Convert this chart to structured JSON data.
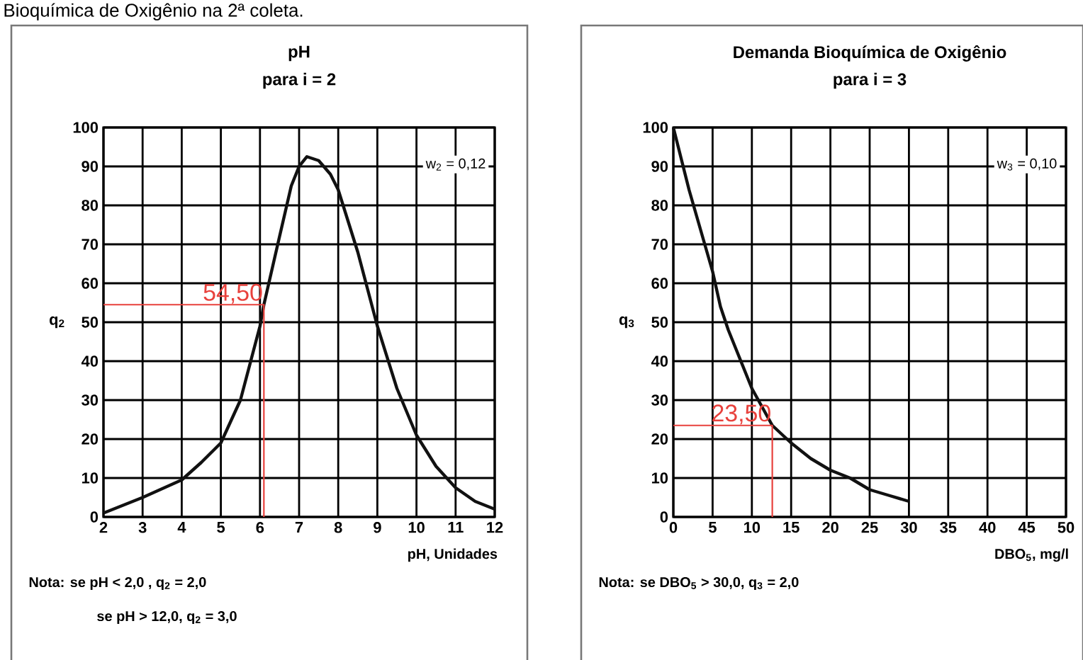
{
  "chart_data": [
    {
      "type": "line",
      "title": "pH",
      "subtitle": "para i = 2",
      "xlabel": "pH, Unidades",
      "ylabel": "q$_{2}$",
      "series": [
        {
          "x": [
            2,
            3,
            4,
            4.5,
            5,
            5.5,
            6,
            6.1,
            6.5,
            6.8,
            7,
            7.2,
            7.5,
            7.8,
            8,
            8.5,
            9,
            9.5,
            10,
            10.5,
            11,
            11.5,
            12
          ],
          "values": [
            1,
            5,
            9.5,
            14,
            19,
            30,
            49,
            54.5,
            72,
            85,
            90,
            92.5,
            91.5,
            88,
            84,
            68,
            49,
            33,
            21,
            13,
            7.5,
            4,
            2
          ],
          "color": "#111111"
        },
        {
          "x": [
            2,
            6.1,
            6.1
          ],
          "values": [
            54.5,
            54.5,
            0
          ],
          "color": "#e8413c"
        }
      ],
      "marker": "none",
      "line_style": "solid",
      "xlim": [
        2,
        12
      ],
      "ylim": [
        0,
        100
      ],
      "xticks": [
        2,
        3,
        4,
        5,
        6,
        7,
        8,
        9,
        10,
        11,
        12
      ],
      "yticks": [
        0,
        10,
        20,
        30,
        40,
        50,
        60,
        70,
        80,
        90,
        100
      ],
      "grid": true,
      "annotations": [
        "Bioquímica de Oxigênio na 2ª coleta.",
        "w$_{2}$ = 0,12",
        {
          "text": "54,50",
          "x": 6.1,
          "y": 54.5
        },
        "Nota:  se pH < 2,0 ,  q$_{2}$ = 2,0",
        "se pH > 12,0,  q$_{2}$ = 3,0"
      ]
    },
    {
      "type": "line",
      "title": "Demanda Bioquímica de Oxigênio",
      "subtitle": "para i = 3",
      "xlabel": "DBO$_{5}$, mg/l",
      "ylabel": "q$_{3}$",
      "series": [
        {
          "x": [
            0,
            1,
            2,
            3,
            4,
            5,
            6,
            7,
            8,
            10,
            12.6,
            15,
            17.5,
            20,
            22.5,
            25,
            27.5,
            30
          ],
          "values": [
            100,
            92,
            84,
            77,
            70,
            63,
            54,
            48,
            43,
            33,
            23.5,
            19,
            15,
            12,
            10,
            7,
            5.5,
            4
          ],
          "color": "#111111"
        },
        {
          "x": [
            0,
            12.6,
            12.6
          ],
          "values": [
            23.5,
            23.5,
            0
          ],
          "color": "#e8413c"
        }
      ],
      "marker": "none",
      "line_style": "solid",
      "xlim": [
        0,
        50
      ],
      "ylim": [
        0,
        100
      ],
      "xticks": [
        0,
        5,
        10,
        15,
        20,
        25,
        30,
        35,
        40,
        45,
        50
      ],
      "yticks": [
        0,
        10,
        20,
        30,
        40,
        50,
        60,
        70,
        80,
        90,
        100
      ],
      "grid": true,
      "annotations": [
        "w$_{3}$ = 0,10",
        {
          "text": "23,50",
          "x": 12.6,
          "y": 23.5
        },
        "Nota:  se DBO$_{5}$ > 30,0, q$_{3}$ = 2,0"
      ]
    }
  ]
}
